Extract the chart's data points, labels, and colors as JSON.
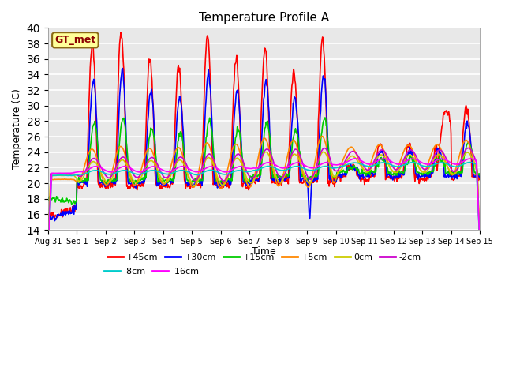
{
  "title": "Temperature Profile A",
  "xlabel": "Time",
  "ylabel": "Temperature (C)",
  "ylim": [
    14,
    40
  ],
  "yticks": [
    14,
    16,
    18,
    20,
    22,
    24,
    26,
    28,
    30,
    32,
    34,
    36,
    38,
    40
  ],
  "series": [
    {
      "label": "+45cm",
      "color": "#FF0000",
      "lw": 1.2
    },
    {
      "label": "+30cm",
      "color": "#0000FF",
      "lw": 1.2
    },
    {
      "label": "+15cm",
      "color": "#00CC00",
      "lw": 1.2
    },
    {
      "label": "+5cm",
      "color": "#FF8800",
      "lw": 1.2
    },
    {
      "label": "0cm",
      "color": "#CCCC00",
      "lw": 1.2
    },
    {
      "label": "-2cm",
      "color": "#CC00CC",
      "lw": 1.2
    },
    {
      "label": "-8cm",
      "color": "#00CCCC",
      "lw": 1.2
    },
    {
      "label": "-16cm",
      "color": "#FF00FF",
      "lw": 1.2
    }
  ],
  "bg_color": "#E8E8E8",
  "grid_color": "#FFFFFF",
  "annotation_text": "GT_met",
  "annotation_bg": "#FFFF99",
  "annotation_border": "#8B6914",
  "tick_labels": [
    "Aug 31",
    "Sep 1",
    "Sep 2",
    "Sep 3",
    "Sep 4",
    "Sep 5",
    "Sep 6",
    "Sep 7",
    "Sep 8",
    "Sep 9",
    "Sep 10",
    "Sep 11",
    "Sep 12",
    "Sep 13",
    "Sep 14",
    "Sep 15"
  ]
}
